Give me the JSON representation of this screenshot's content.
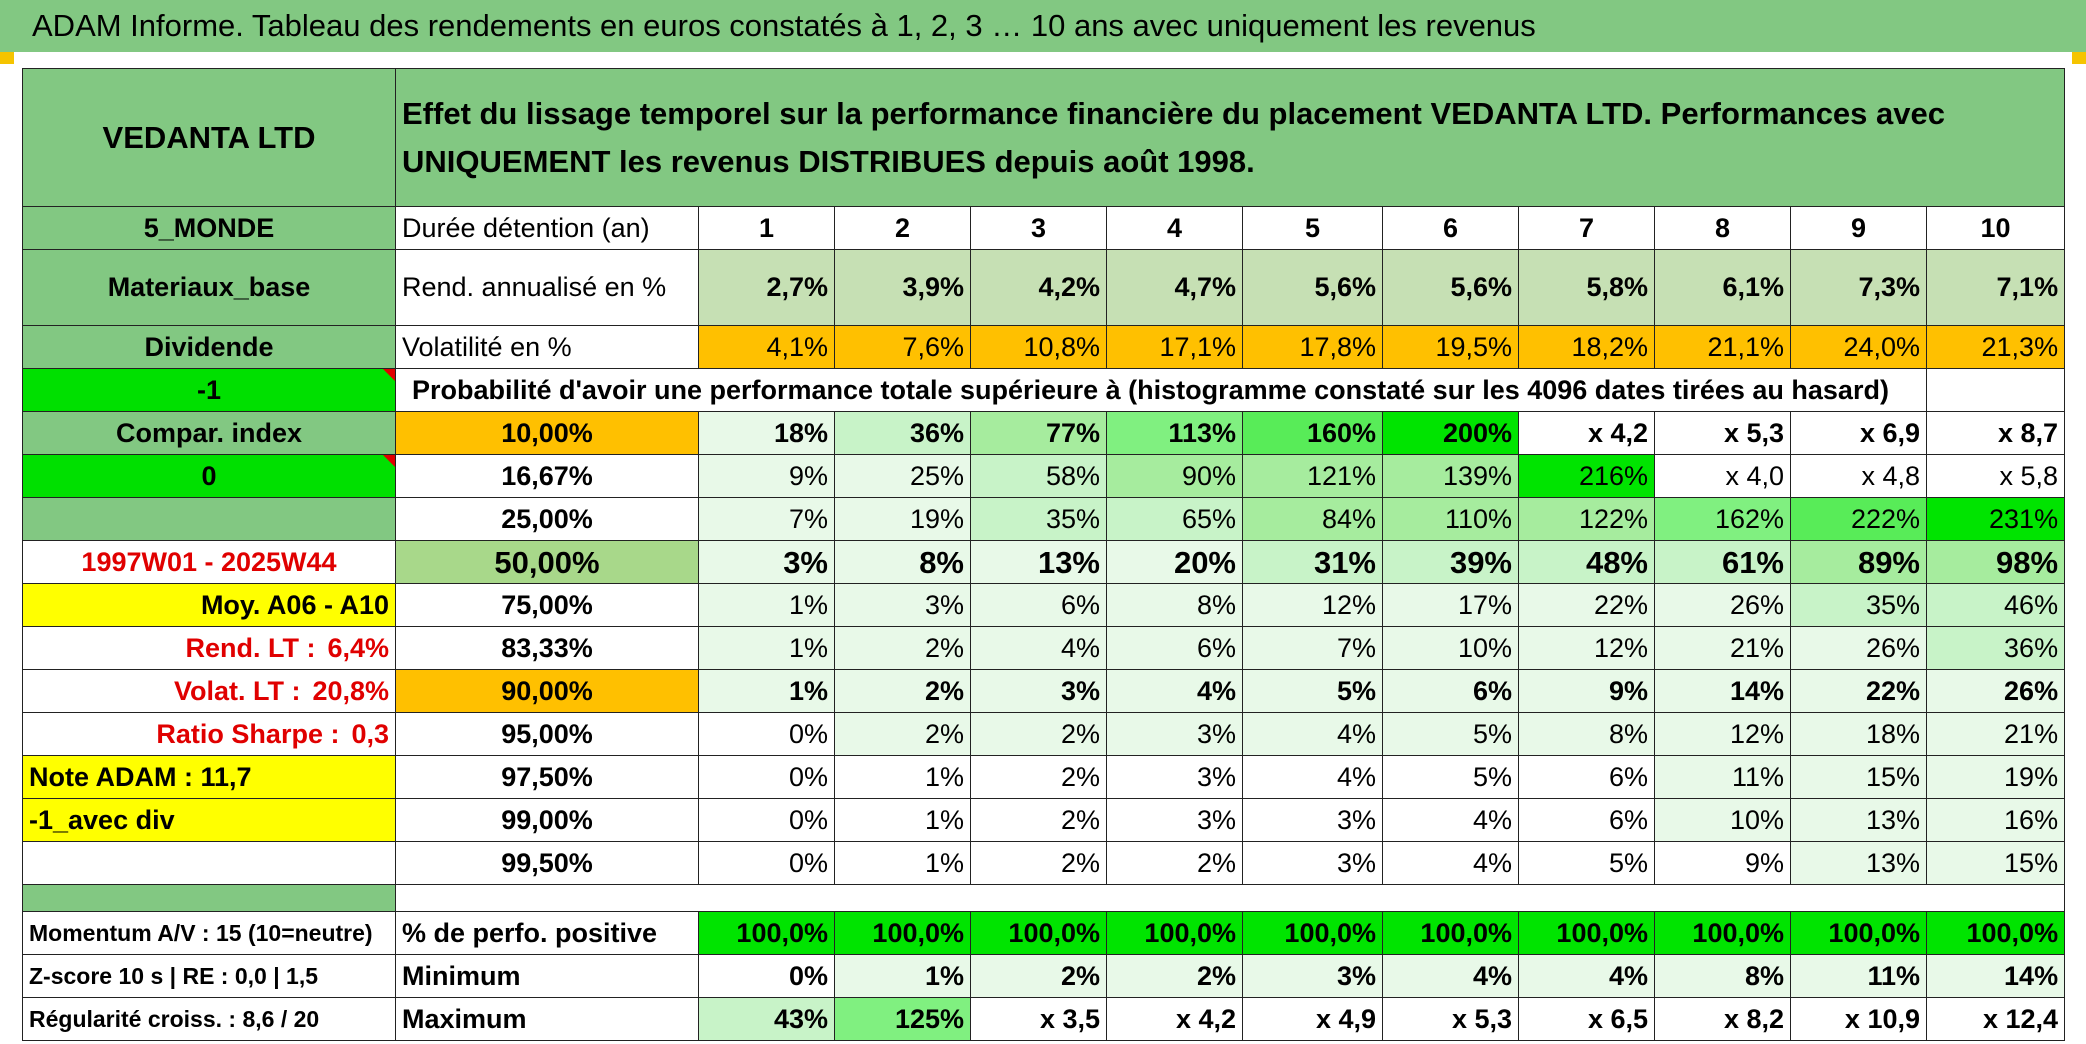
{
  "title": "ADAM Informe. Tableau des rendements en euros constatés à 1, 2, 3 … 10 ans avec uniquement les revenus",
  "header": {
    "company": "VEDANTA LTD",
    "description": "Effet du lissage temporel sur la performance financière du placement VEDANTA LTD. Performances avec UNIQUEMENT les revenus DISTRIBUES depuis août 1998."
  },
  "side": {
    "zone": "5_MONDE",
    "sector": "Materiaux_base",
    "type": "Dividende",
    "flag": "-1",
    "compar_label": "Compar. index",
    "compar_value": "0",
    "period": "1997W01 - 2025W44",
    "moy": "Moy. A06 - A10",
    "rend_lt_label": "Rend. LT :",
    "rend_lt_value": "6,4%",
    "volat_lt_label": "Volat. LT :",
    "volat_lt_value": "20,8%",
    "sharpe_label": "Ratio Sharpe :",
    "sharpe_value": "0,3",
    "note": "Note ADAM : 11,7",
    "avec_div": "-1_avec div",
    "momentum": "Momentum A/V : 15 (10=neutre)",
    "zscore": "Z-score 10 s | RE : 0,0 | 1,5",
    "regularite": "Régularité croiss. : 8,6 / 20"
  },
  "durations_label": "Durée détention (an)",
  "durations": [
    "1",
    "2",
    "3",
    "4",
    "5",
    "6",
    "7",
    "8",
    "9",
    "10"
  ],
  "rend_label": "Rend. annualisé en %",
  "rend": [
    "2,7%",
    "3,9%",
    "4,2%",
    "4,7%",
    "5,6%",
    "5,6%",
    "5,8%",
    "6,1%",
    "7,3%",
    "7,1%"
  ],
  "vol_label": "Volatilité en %",
  "vol": [
    "4,1%",
    "7,6%",
    "10,8%",
    "17,1%",
    "17,8%",
    "19,5%",
    "18,2%",
    "21,1%",
    "24,0%",
    "21,3%"
  ],
  "prob_title": "Probabilité d'avoir une performance totale supérieure à (histogramme constaté sur les 4096 dates tirées au hasard)",
  "prob_rows": [
    {
      "p": "10,00%",
      "v": [
        "18%",
        "36%",
        "77%",
        "113%",
        "160%",
        "200%",
        "x 4,2",
        "x 5,3",
        "x 6,9",
        "x 8,7"
      ]
    },
    {
      "p": "16,67%",
      "v": [
        "9%",
        "25%",
        "58%",
        "90%",
        "121%",
        "139%",
        "216%",
        "x 4,0",
        "x 4,8",
        "x 5,8"
      ]
    },
    {
      "p": "25,00%",
      "v": [
        "7%",
        "19%",
        "35%",
        "65%",
        "84%",
        "110%",
        "122%",
        "162%",
        "222%",
        "231%"
      ]
    },
    {
      "p": "50,00%",
      "v": [
        "3%",
        "8%",
        "13%",
        "20%",
        "31%",
        "39%",
        "48%",
        "61%",
        "89%",
        "98%"
      ]
    },
    {
      "p": "75,00%",
      "v": [
        "1%",
        "3%",
        "6%",
        "8%",
        "12%",
        "17%",
        "22%",
        "26%",
        "35%",
        "46%"
      ]
    },
    {
      "p": "83,33%",
      "v": [
        "1%",
        "2%",
        "4%",
        "6%",
        "7%",
        "10%",
        "12%",
        "21%",
        "26%",
        "36%"
      ]
    },
    {
      "p": "90,00%",
      "v": [
        "1%",
        "2%",
        "3%",
        "4%",
        "5%",
        "6%",
        "9%",
        "14%",
        "22%",
        "26%"
      ]
    },
    {
      "p": "95,00%",
      "v": [
        "0%",
        "2%",
        "2%",
        "3%",
        "4%",
        "5%",
        "8%",
        "12%",
        "18%",
        "21%"
      ]
    },
    {
      "p": "97,50%",
      "v": [
        "0%",
        "1%",
        "2%",
        "3%",
        "4%",
        "5%",
        "6%",
        "11%",
        "15%",
        "19%"
      ]
    },
    {
      "p": "99,00%",
      "v": [
        "0%",
        "1%",
        "2%",
        "3%",
        "3%",
        "4%",
        "6%",
        "10%",
        "13%",
        "16%"
      ]
    },
    {
      "p": "99,50%",
      "v": [
        "0%",
        "1%",
        "2%",
        "2%",
        "3%",
        "4%",
        "5%",
        "9%",
        "13%",
        "15%"
      ]
    }
  ],
  "pos_label": "% de perfo. positive",
  "pos": [
    "100,0%",
    "100,0%",
    "100,0%",
    "100,0%",
    "100,0%",
    "100,0%",
    "100,0%",
    "100,0%",
    "100,0%",
    "100,0%"
  ],
  "min_label": "Minimum",
  "min": [
    "0%",
    "1%",
    "2%",
    "2%",
    "3%",
    "4%",
    "4%",
    "8%",
    "11%",
    "14%"
  ],
  "max_label": "Maximum",
  "max": [
    "43%",
    "125%",
    "x 3,5",
    "x 4,2",
    "x 4,9",
    "x 5,3",
    "x 6,5",
    "x 8,2",
    "x 10,9",
    "x 12,4"
  ],
  "colors": {
    "header_green": "#82c882",
    "light_green": "#c6e0b4",
    "lime": "#00e000",
    "yellow": "#ffff00",
    "orange": "#ffc000",
    "red_text": "#e00000"
  }
}
